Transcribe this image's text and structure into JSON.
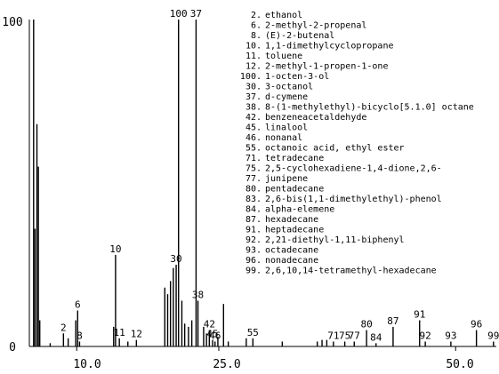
{
  "chart_data": {
    "type": "bar",
    "xlim": [
      5.0,
      54.3
    ],
    "ylim": [
      0,
      100
    ],
    "x_ticks": [
      "10.0",
      "25.0",
      "50.0"
    ],
    "y_ticks": [
      "0",
      "100"
    ],
    "grid": false,
    "legend_position": "top-right",
    "peaks": [
      {
        "x": 5.45,
        "y": 100
      },
      {
        "x": 5.6,
        "y": 36
      },
      {
        "x": 5.8,
        "y": 68
      },
      {
        "x": 5.95,
        "y": 55
      },
      {
        "x": 6.1,
        "y": 8
      },
      {
        "x": 7.2,
        "y": 1
      },
      {
        "x": 8.6,
        "y": 4,
        "label": "2"
      },
      {
        "x": 9.1,
        "y": 2.5
      },
      {
        "x": 9.9,
        "y": 8
      },
      {
        "x": 10.1,
        "y": 11,
        "label": "6"
      },
      {
        "x": 10.3,
        "y": 1.5,
        "label": "8"
      },
      {
        "x": 13.9,
        "y": 6
      },
      {
        "x": 14.1,
        "y": 28,
        "label": "10"
      },
      {
        "x": 14.5,
        "y": 2.5,
        "label": "11"
      },
      {
        "x": 15.4,
        "y": 1.5
      },
      {
        "x": 16.3,
        "y": 2,
        "label": "12"
      },
      {
        "x": 19.3,
        "y": 18
      },
      {
        "x": 19.6,
        "y": 16
      },
      {
        "x": 19.9,
        "y": 20
      },
      {
        "x": 20.2,
        "y": 24
      },
      {
        "x": 20.5,
        "y": 25,
        "label": "30"
      },
      {
        "x": 20.75,
        "y": 100,
        "label": "100"
      },
      {
        "x": 21.1,
        "y": 14
      },
      {
        "x": 21.4,
        "y": 7
      },
      {
        "x": 21.8,
        "y": 6
      },
      {
        "x": 22.15,
        "y": 8
      },
      {
        "x": 22.6,
        "y": 100,
        "label": "37"
      },
      {
        "x": 22.8,
        "y": 14,
        "label": "38"
      },
      {
        "x": 23.4,
        "y": 6
      },
      {
        "x": 23.7,
        "y": 4
      },
      {
        "x": 24.0,
        "y": 5,
        "label": "42"
      },
      {
        "x": 24.35,
        "y": 2,
        "label": "45"
      },
      {
        "x": 24.6,
        "y": 1.5,
        "label": "46"
      },
      {
        "x": 24.9,
        "y": 3
      },
      {
        "x": 25.5,
        "y": 13
      },
      {
        "x": 26.0,
        "y": 1.5
      },
      {
        "x": 27.9,
        "y": 2.5
      },
      {
        "x": 28.6,
        "y": 2.5,
        "label": "55"
      },
      {
        "x": 31.7,
        "y": 1.5
      },
      {
        "x": 35.4,
        "y": 1.5
      },
      {
        "x": 35.9,
        "y": 2
      },
      {
        "x": 36.4,
        "y": 2
      },
      {
        "x": 37.1,
        "y": 1.5,
        "label": "71"
      },
      {
        "x": 38.3,
        "y": 1.5,
        "label": "75"
      },
      {
        "x": 39.3,
        "y": 1.5,
        "label": "77"
      },
      {
        "x": 40.6,
        "y": 5,
        "label": "80"
      },
      {
        "x": 41.6,
        "y": 1,
        "label": "84"
      },
      {
        "x": 43.4,
        "y": 6,
        "label": "87"
      },
      {
        "x": 46.2,
        "y": 8,
        "label": "91"
      },
      {
        "x": 46.8,
        "y": 1.5,
        "label": "92"
      },
      {
        "x": 49.5,
        "y": 1.5,
        "label": "93"
      },
      {
        "x": 52.2,
        "y": 5,
        "label": "96"
      },
      {
        "x": 54.0,
        "y": 1.5,
        "label": "99"
      }
    ],
    "legend": [
      {
        "id": "2.",
        "name": "ethanol"
      },
      {
        "id": "6.",
        "name": "2-methyl-2-propenal"
      },
      {
        "id": "8.",
        "name": "(E)-2-butenal"
      },
      {
        "id": "10.",
        "name": "1,1-dimethylcyclopropane"
      },
      {
        "id": "11.",
        "name": "toluene"
      },
      {
        "id": "12.",
        "name": "2-methyl-1-propen-1-one"
      },
      {
        "id": "100.",
        "name": "1-octen-3-ol"
      },
      {
        "id": "30.",
        "name": "3-octanol"
      },
      {
        "id": "37.",
        "name": "d-cymene"
      },
      {
        "id": "38.",
        "name": "8-(1-methylethyl)-bicyclo[5.1.0] octane"
      },
      {
        "id": "42.",
        "name": "benzeneacetaldehyde"
      },
      {
        "id": "45.",
        "name": "linalool"
      },
      {
        "id": "46.",
        "name": "nonanal"
      },
      {
        "id": "55.",
        "name": "octanoic acid, ethyl ester"
      },
      {
        "id": "71.",
        "name": "tetradecane"
      },
      {
        "id": "75.",
        "name": "2,5-cyclohexadiene-1,4-dione,2,6-"
      },
      {
        "id": "77.",
        "name": "junipene"
      },
      {
        "id": "80.",
        "name": "pentadecane"
      },
      {
        "id": "83.",
        "name": "2,6-bis(1,1-dimethylethyl)-phenol"
      },
      {
        "id": "84.",
        "name": "alpha-elemene"
      },
      {
        "id": "87.",
        "name": "hexadecane"
      },
      {
        "id": "91.",
        "name": "heptadecane"
      },
      {
        "id": "92.",
        "name": "2,21-diethyl-1,11-biphenyl"
      },
      {
        "id": "93.",
        "name": "octadecane"
      },
      {
        "id": "96.",
        "name": "nonadecane"
      },
      {
        "id": "99.",
        "name": "2,6,10,14-tetramethyl-hexadecane"
      }
    ]
  }
}
